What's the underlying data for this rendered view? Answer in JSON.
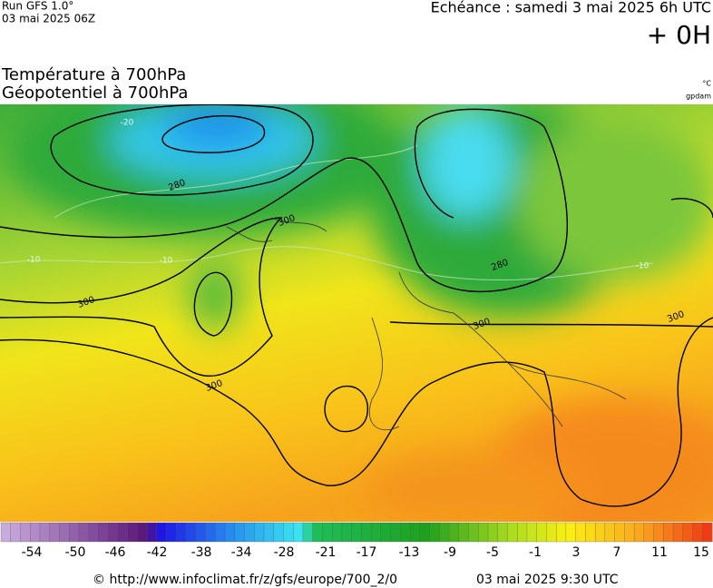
{
  "header": {
    "run": "Run GFS 1.0°",
    "run_date": "03 mai 2025 06Z",
    "forecast": "Echéance : samedi 3 mai 2025 6h UTC",
    "offset": "+ 0H",
    "title1": "Température à 700hPa",
    "title2": "Géopotentiel à 700hPa",
    "unit1": "°C",
    "unit2": "gpdam"
  },
  "map": {
    "contour_labels": [
      "280",
      "300",
      "300",
      "300",
      "300",
      "300",
      "280"
    ],
    "isotherm_labels": [
      "-20",
      "-10",
      "-10",
      "-10"
    ]
  },
  "colorbar": {
    "labels": [
      -54,
      -50,
      -46,
      -42,
      -38,
      -34,
      -28,
      -21,
      -17,
      -13,
      -9,
      -5,
      -1,
      3,
      7,
      11,
      15
    ]
  },
  "footer": {
    "source": "© http://www.infoclimat.fr/z/gfs/europe/700_2/0",
    "generated": "03 mai 2025  9:30 UTC"
  }
}
